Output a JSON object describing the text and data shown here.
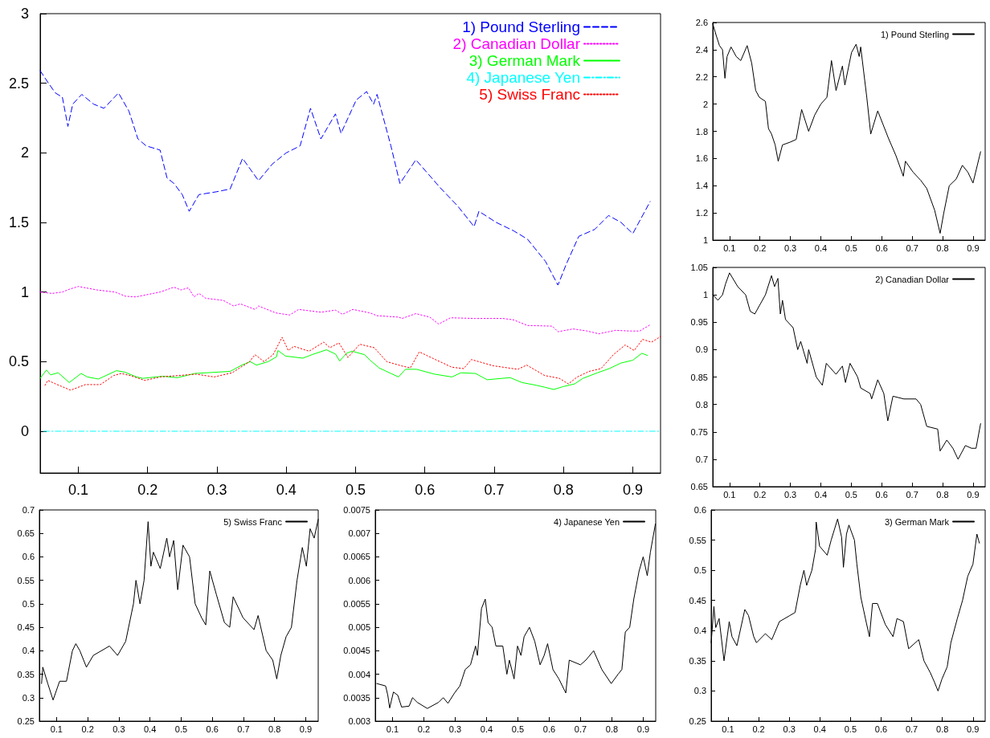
{
  "chart_data": [
    {
      "type": "line",
      "xlim": [
        0.045,
        0.94
      ],
      "xticks": [
        0.1,
        0.2,
        0.3,
        0.4,
        0.5,
        0.6,
        0.7,
        0.8,
        0.9
      ],
      "ylim": [
        -0.3,
        3
      ],
      "yticks": [
        0,
        0.5,
        1,
        1.5,
        2,
        2.5,
        3
      ],
      "legend": "top right",
      "series": [
        {
          "name": "1) Pound Sterling",
          "color": "#0000ff",
          "line_style": "dashed",
          "x": [
            0.045,
            0.057,
            0.067,
            0.077,
            0.085,
            0.092,
            0.105,
            0.122,
            0.137,
            0.158,
            0.173,
            0.186,
            0.198,
            0.218,
            0.228,
            0.238,
            0.25,
            0.26,
            0.274,
            0.299,
            0.319,
            0.337,
            0.36,
            0.38,
            0.4,
            0.42,
            0.435,
            0.45,
            0.471,
            0.479,
            0.501,
            0.516,
            0.526,
            0.531,
            0.551,
            0.564,
            0.587,
            0.622,
            0.647,
            0.671,
            0.678,
            0.703,
            0.728,
            0.748,
            0.774,
            0.792,
            0.804,
            0.822,
            0.845,
            0.865,
            0.883,
            0.9,
            0.925
          ],
          "values": [
            2.59,
            2.5,
            2.43,
            2.4,
            2.19,
            2.35,
            2.42,
            2.35,
            2.32,
            2.43,
            2.3,
            2.1,
            2.05,
            2.02,
            1.82,
            1.78,
            1.7,
            1.58,
            1.7,
            1.72,
            1.74,
            1.96,
            1.8,
            1.92,
            2.0,
            2.05,
            2.32,
            2.1,
            2.28,
            2.14,
            2.38,
            2.44,
            2.35,
            2.42,
            2.05,
            1.78,
            1.95,
            1.75,
            1.62,
            1.47,
            1.58,
            1.5,
            1.44,
            1.38,
            1.22,
            1.05,
            1.2,
            1.4,
            1.45,
            1.55,
            1.5,
            1.42,
            1.65
          ]
        },
        {
          "name": "2) Canadian Dollar",
          "color": "#ff00ff",
          "line_style": "dotted",
          "x": [
            0.045,
            0.062,
            0.077,
            0.087,
            0.1,
            0.127,
            0.153,
            0.168,
            0.183,
            0.198,
            0.218,
            0.238,
            0.248,
            0.259,
            0.267,
            0.274,
            0.284,
            0.309,
            0.324,
            0.334,
            0.355,
            0.36,
            0.385,
            0.405,
            0.418,
            0.45,
            0.471,
            0.481,
            0.496,
            0.521,
            0.531,
            0.562,
            0.567,
            0.587,
            0.607,
            0.62,
            0.637,
            0.673,
            0.713,
            0.728,
            0.748,
            0.784,
            0.792,
            0.814,
            0.834,
            0.851,
            0.875,
            0.895,
            0.91,
            0.925
          ],
          "values": [
            1.0,
            0.99,
            1.0,
            1.02,
            1.04,
            1.015,
            1.0,
            0.97,
            0.965,
            0.98,
            1.0,
            1.035,
            1.015,
            1.03,
            0.965,
            0.99,
            0.955,
            0.94,
            0.9,
            0.915,
            0.875,
            0.9,
            0.85,
            0.835,
            0.875,
            0.855,
            0.87,
            0.84,
            0.875,
            0.85,
            0.83,
            0.82,
            0.81,
            0.845,
            0.82,
            0.77,
            0.815,
            0.81,
            0.81,
            0.8,
            0.76,
            0.755,
            0.715,
            0.735,
            0.72,
            0.7,
            0.725,
            0.72,
            0.72,
            0.765
          ]
        },
        {
          "name": "3) German Mark",
          "color": "#00ff00",
          "line_style": "solid",
          "x": [
            0.045,
            0.054,
            0.06,
            0.071,
            0.087,
            0.104,
            0.113,
            0.129,
            0.155,
            0.167,
            0.184,
            0.193,
            0.222,
            0.243,
            0.268,
            0.302,
            0.319,
            0.336,
            0.348,
            0.357,
            0.374,
            0.386,
            0.388,
            0.399,
            0.424,
            0.437,
            0.458,
            0.471,
            0.477,
            0.487,
            0.495,
            0.513,
            0.521,
            0.534,
            0.551,
            0.562,
            0.572,
            0.588,
            0.614,
            0.639,
            0.652,
            0.673,
            0.69,
            0.723,
            0.74,
            0.761,
            0.774,
            0.786,
            0.799,
            0.816,
            0.828,
            0.849,
            0.866,
            0.883,
            0.9,
            0.913,
            0.921
          ],
          "values": [
            0.38,
            0.44,
            0.405,
            0.42,
            0.35,
            0.415,
            0.39,
            0.375,
            0.435,
            0.425,
            0.39,
            0.38,
            0.395,
            0.385,
            0.415,
            0.425,
            0.43,
            0.475,
            0.5,
            0.475,
            0.5,
            0.535,
            0.58,
            0.54,
            0.525,
            0.55,
            0.585,
            0.555,
            0.505,
            0.56,
            0.575,
            0.55,
            0.51,
            0.455,
            0.415,
            0.39,
            0.445,
            0.445,
            0.41,
            0.39,
            0.42,
            0.415,
            0.37,
            0.385,
            0.35,
            0.33,
            0.315,
            0.3,
            0.32,
            0.34,
            0.38,
            0.42,
            0.45,
            0.49,
            0.51,
            0.56,
            0.545
          ]
        },
        {
          "name": "4) Japanese Yen",
          "color": "#00ffff",
          "line_style": "dashdot",
          "x": [
            0.05,
            0.5,
            0.939
          ],
          "values": [
            0,
            0,
            0
          ]
        },
        {
          "name": "5) Swiss Franc",
          "color": "#ff0000",
          "line_style": "dotted",
          "x": [
            0.052,
            0.056,
            0.072,
            0.089,
            0.11,
            0.132,
            0.151,
            0.162,
            0.175,
            0.196,
            0.218,
            0.27,
            0.296,
            0.322,
            0.347,
            0.355,
            0.368,
            0.381,
            0.394,
            0.403,
            0.411,
            0.433,
            0.454,
            0.463,
            0.476,
            0.489,
            0.506,
            0.527,
            0.545,
            0.566,
            0.579,
            0.592,
            0.613,
            0.639,
            0.656,
            0.667,
            0.699,
            0.734,
            0.747,
            0.773,
            0.794,
            0.807,
            0.82,
            0.837,
            0.854,
            0.872,
            0.889,
            0.902,
            0.914,
            0.927,
            0.94
          ],
          "values": [
            0.33,
            0.365,
            0.33,
            0.295,
            0.335,
            0.335,
            0.4,
            0.415,
            0.4,
            0.365,
            0.39,
            0.41,
            0.39,
            0.42,
            0.5,
            0.55,
            0.5,
            0.55,
            0.675,
            0.58,
            0.61,
            0.575,
            0.64,
            0.6,
            0.635,
            0.53,
            0.625,
            0.6,
            0.5,
            0.47,
            0.455,
            0.57,
            0.52,
            0.46,
            0.45,
            0.515,
            0.47,
            0.445,
            0.475,
            0.4,
            0.38,
            0.34,
            0.39,
            0.43,
            0.45,
            0.55,
            0.62,
            0.58,
            0.66,
            0.64,
            0.68
          ]
        }
      ]
    },
    {
      "type": "line",
      "xlim": [
        0.045,
        0.94
      ],
      "xticks": [
        0.1,
        0.2,
        0.3,
        0.4,
        0.5,
        0.6,
        0.7,
        0.8,
        0.9
      ],
      "ylim": [
        1,
        2.6
      ],
      "yticks": [
        1,
        1.2,
        1.4,
        1.6,
        1.8,
        2,
        2.2,
        2.4,
        2.6
      ],
      "legend": "top right",
      "line_style": "solid",
      "series": [
        {
          "name": "1) Pound Sterling",
          "color": "#000000",
          "x": [
            0.045,
            0.057,
            0.067,
            0.077,
            0.085,
            0.092,
            0.105,
            0.122,
            0.137,
            0.158,
            0.173,
            0.186,
            0.198,
            0.218,
            0.228,
            0.238,
            0.25,
            0.26,
            0.274,
            0.299,
            0.319,
            0.337,
            0.36,
            0.38,
            0.4,
            0.42,
            0.435,
            0.45,
            0.471,
            0.479,
            0.501,
            0.516,
            0.526,
            0.531,
            0.551,
            0.564,
            0.587,
            0.622,
            0.647,
            0.671,
            0.678,
            0.703,
            0.728,
            0.748,
            0.774,
            0.792,
            0.804,
            0.822,
            0.845,
            0.865,
            0.883,
            0.9,
            0.925
          ],
          "values": [
            2.59,
            2.5,
            2.43,
            2.4,
            2.19,
            2.35,
            2.42,
            2.35,
            2.32,
            2.43,
            2.3,
            2.1,
            2.05,
            2.02,
            1.82,
            1.78,
            1.7,
            1.58,
            1.7,
            1.72,
            1.74,
            1.96,
            1.8,
            1.92,
            2.0,
            2.05,
            2.32,
            2.1,
            2.28,
            2.14,
            2.38,
            2.44,
            2.35,
            2.42,
            2.05,
            1.78,
            1.95,
            1.75,
            1.62,
            1.47,
            1.58,
            1.5,
            1.44,
            1.38,
            1.22,
            1.05,
            1.2,
            1.4,
            1.45,
            1.55,
            1.5,
            1.42,
            1.65
          ]
        }
      ]
    },
    {
      "type": "line",
      "xlim": [
        0.045,
        0.94
      ],
      "xticks": [
        0.1,
        0.2,
        0.3,
        0.4,
        0.5,
        0.6,
        0.7,
        0.8,
        0.9
      ],
      "ylim": [
        0.65,
        1.05
      ],
      "yticks": [
        0.65,
        0.7,
        0.75,
        0.8,
        0.85,
        0.9,
        0.95,
        1,
        1.05
      ],
      "legend": "top right",
      "line_style": "solid",
      "series": [
        {
          "name": "2) Canadian Dollar",
          "color": "#000000",
          "x": [
            0.045,
            0.062,
            0.077,
            0.087,
            0.1,
            0.127,
            0.153,
            0.168,
            0.183,
            0.198,
            0.218,
            0.238,
            0.248,
            0.259,
            0.267,
            0.274,
            0.284,
            0.309,
            0.324,
            0.334,
            0.355,
            0.36,
            0.385,
            0.405,
            0.418,
            0.45,
            0.471,
            0.481,
            0.496,
            0.521,
            0.531,
            0.562,
            0.567,
            0.587,
            0.607,
            0.62,
            0.637,
            0.673,
            0.713,
            0.728,
            0.748,
            0.784,
            0.792,
            0.814,
            0.834,
            0.851,
            0.875,
            0.895,
            0.91,
            0.925
          ],
          "values": [
            1.0,
            0.99,
            1.0,
            1.02,
            1.04,
            1.015,
            1.0,
            0.97,
            0.965,
            0.98,
            1.0,
            1.035,
            1.015,
            1.03,
            0.965,
            0.99,
            0.955,
            0.94,
            0.9,
            0.915,
            0.875,
            0.9,
            0.85,
            0.835,
            0.875,
            0.855,
            0.87,
            0.84,
            0.875,
            0.85,
            0.83,
            0.82,
            0.81,
            0.845,
            0.82,
            0.77,
            0.815,
            0.81,
            0.81,
            0.8,
            0.76,
            0.755,
            0.715,
            0.735,
            0.72,
            0.7,
            0.725,
            0.72,
            0.72,
            0.765
          ]
        }
      ]
    },
    {
      "type": "line",
      "xlim": [
        0.045,
        0.94
      ],
      "xticks": [
        0.1,
        0.2,
        0.3,
        0.4,
        0.5,
        0.6,
        0.7,
        0.8,
        0.9
      ],
      "ylim": [
        0.25,
        0.7
      ],
      "yticks": [
        0.25,
        0.3,
        0.35,
        0.4,
        0.45,
        0.5,
        0.55,
        0.6,
        0.65,
        0.7
      ],
      "legend": "top right",
      "line_style": "solid",
      "series": [
        {
          "name": "5) Swiss Franc",
          "color": "#000000",
          "x": [
            0.052,
            0.056,
            0.072,
            0.089,
            0.11,
            0.132,
            0.151,
            0.162,
            0.175,
            0.196,
            0.218,
            0.27,
            0.296,
            0.322,
            0.347,
            0.355,
            0.368,
            0.381,
            0.394,
            0.403,
            0.411,
            0.433,
            0.454,
            0.463,
            0.476,
            0.489,
            0.506,
            0.527,
            0.545,
            0.566,
            0.579,
            0.592,
            0.613,
            0.639,
            0.656,
            0.667,
            0.699,
            0.734,
            0.747,
            0.773,
            0.794,
            0.807,
            0.82,
            0.837,
            0.854,
            0.872,
            0.889,
            0.902,
            0.914,
            0.927,
            0.94
          ],
          "values": [
            0.33,
            0.365,
            0.33,
            0.295,
            0.335,
            0.335,
            0.4,
            0.415,
            0.4,
            0.365,
            0.39,
            0.41,
            0.39,
            0.42,
            0.5,
            0.55,
            0.5,
            0.55,
            0.675,
            0.58,
            0.61,
            0.575,
            0.64,
            0.6,
            0.635,
            0.53,
            0.625,
            0.6,
            0.5,
            0.47,
            0.455,
            0.57,
            0.52,
            0.46,
            0.45,
            0.515,
            0.47,
            0.445,
            0.475,
            0.4,
            0.38,
            0.34,
            0.39,
            0.43,
            0.45,
            0.55,
            0.62,
            0.58,
            0.66,
            0.64,
            0.68
          ]
        }
      ]
    },
    {
      "type": "line",
      "xlim": [
        0.045,
        0.94
      ],
      "xticks": [
        0.1,
        0.2,
        0.3,
        0.4,
        0.5,
        0.6,
        0.7,
        0.8,
        0.9
      ],
      "ylim": [
        0.003,
        0.0075
      ],
      "yticks": [
        0.003,
        0.0035,
        0.004,
        0.0045,
        0.005,
        0.0055,
        0.006,
        0.0065,
        0.007,
        0.0075
      ],
      "legend": "top right",
      "line_style": "solid",
      "series": [
        {
          "name": "4) Japanese Yen",
          "color": "#000000",
          "x": [
            0.05,
            0.078,
            0.085,
            0.091,
            0.103,
            0.117,
            0.129,
            0.153,
            0.164,
            0.179,
            0.211,
            0.247,
            0.262,
            0.277,
            0.298,
            0.315,
            0.332,
            0.349,
            0.365,
            0.371,
            0.384,
            0.396,
            0.405,
            0.418,
            0.43,
            0.452,
            0.465,
            0.473,
            0.488,
            0.499,
            0.51,
            0.52,
            0.537,
            0.554,
            0.571,
            0.584,
            0.595,
            0.612,
            0.631,
            0.653,
            0.664,
            0.7,
            0.717,
            0.742,
            0.768,
            0.798,
            0.82,
            0.832,
            0.843,
            0.857,
            0.87,
            0.887,
            0.9,
            0.913,
            0.923,
            0.939
          ],
          "values": [
            0.0038,
            0.00375,
            0.00355,
            0.00328,
            0.00362,
            0.00355,
            0.0033,
            0.00332,
            0.0035,
            0.0034,
            0.00327,
            0.0034,
            0.0035,
            0.00338,
            0.0036,
            0.00375,
            0.0041,
            0.0042,
            0.0046,
            0.0044,
            0.0054,
            0.0056,
            0.0051,
            0.005,
            0.0046,
            0.0046,
            0.004,
            0.0043,
            0.0039,
            0.0046,
            0.0044,
            0.0048,
            0.005,
            0.0047,
            0.0042,
            0.0044,
            0.00465,
            0.0041,
            0.0039,
            0.0036,
            0.0043,
            0.0042,
            0.0043,
            0.0045,
            0.0041,
            0.0038,
            0.004,
            0.0041,
            0.0049,
            0.005,
            0.0056,
            0.0062,
            0.0065,
            0.0061,
            0.0066,
            0.0072
          ]
        }
      ]
    },
    {
      "type": "line",
      "xlim": [
        0.045,
        0.94
      ],
      "xticks": [
        0.1,
        0.2,
        0.3,
        0.4,
        0.5,
        0.6,
        0.7,
        0.8,
        0.9
      ],
      "ylim": [
        0.25,
        0.6
      ],
      "yticks": [
        0.25,
        0.3,
        0.35,
        0.4,
        0.45,
        0.5,
        0.55,
        0.6
      ],
      "legend": "top right",
      "line_style": "solid",
      "series": [
        {
          "name": "3) German Mark",
          "color": "#000000",
          "x": [
            0.045,
            0.054,
            0.06,
            0.071,
            0.087,
            0.104,
            0.113,
            0.129,
            0.155,
            0.167,
            0.184,
            0.193,
            0.222,
            0.243,
            0.268,
            0.302,
            0.319,
            0.336,
            0.348,
            0.357,
            0.374,
            0.386,
            0.388,
            0.399,
            0.424,
            0.437,
            0.458,
            0.471,
            0.477,
            0.487,
            0.495,
            0.513,
            0.521,
            0.534,
            0.551,
            0.562,
            0.572,
            0.588,
            0.614,
            0.639,
            0.652,
            0.673,
            0.69,
            0.723,
            0.74,
            0.761,
            0.774,
            0.786,
            0.799,
            0.816,
            0.828,
            0.849,
            0.866,
            0.883,
            0.9,
            0.913,
            0.921
          ],
          "values": [
            0.38,
            0.44,
            0.405,
            0.42,
            0.35,
            0.415,
            0.39,
            0.375,
            0.435,
            0.425,
            0.39,
            0.38,
            0.395,
            0.385,
            0.415,
            0.425,
            0.43,
            0.475,
            0.5,
            0.475,
            0.5,
            0.535,
            0.58,
            0.54,
            0.525,
            0.55,
            0.585,
            0.555,
            0.505,
            0.56,
            0.575,
            0.55,
            0.51,
            0.455,
            0.415,
            0.39,
            0.445,
            0.445,
            0.41,
            0.39,
            0.42,
            0.415,
            0.37,
            0.385,
            0.35,
            0.33,
            0.315,
            0.3,
            0.32,
            0.34,
            0.38,
            0.42,
            0.45,
            0.49,
            0.51,
            0.56,
            0.545
          ]
        }
      ]
    }
  ]
}
